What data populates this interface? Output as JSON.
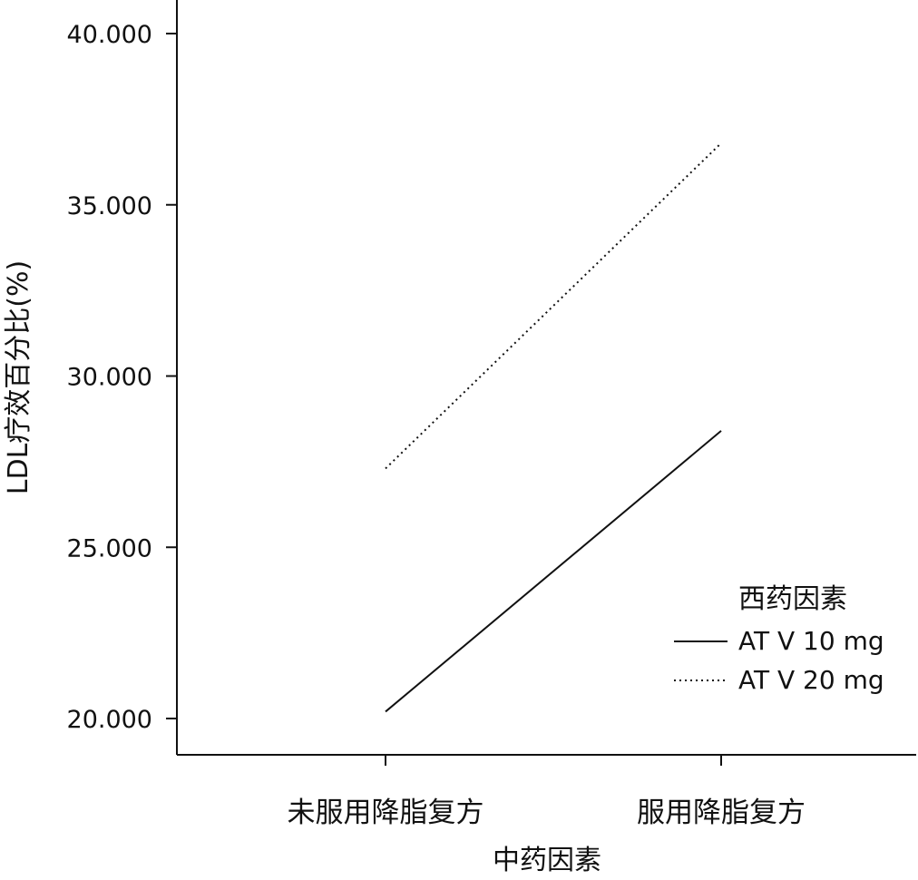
{
  "chart_data": {
    "type": "line",
    "categories": [
      "未服用降脂复方",
      "服用降脂复方"
    ],
    "series": [
      {
        "name": "AT V 10 mg",
        "values": [
          20.2,
          28.4
        ],
        "dash": "solid"
      },
      {
        "name": "AT V 20 mg",
        "values": [
          27.3,
          36.8
        ],
        "dash": "dotted"
      }
    ],
    "yticks": [
      "20.000",
      "25.000",
      "30.000",
      "35.000",
      "40.000"
    ],
    "ytick_values": [
      20,
      25,
      30,
      35,
      40
    ],
    "xlabel": "中药因素",
    "ylabel": "LDL疗效百分比(%)",
    "legend_title": "西药因素",
    "legend_position": "right",
    "grid": false,
    "line_color": "#111111"
  }
}
